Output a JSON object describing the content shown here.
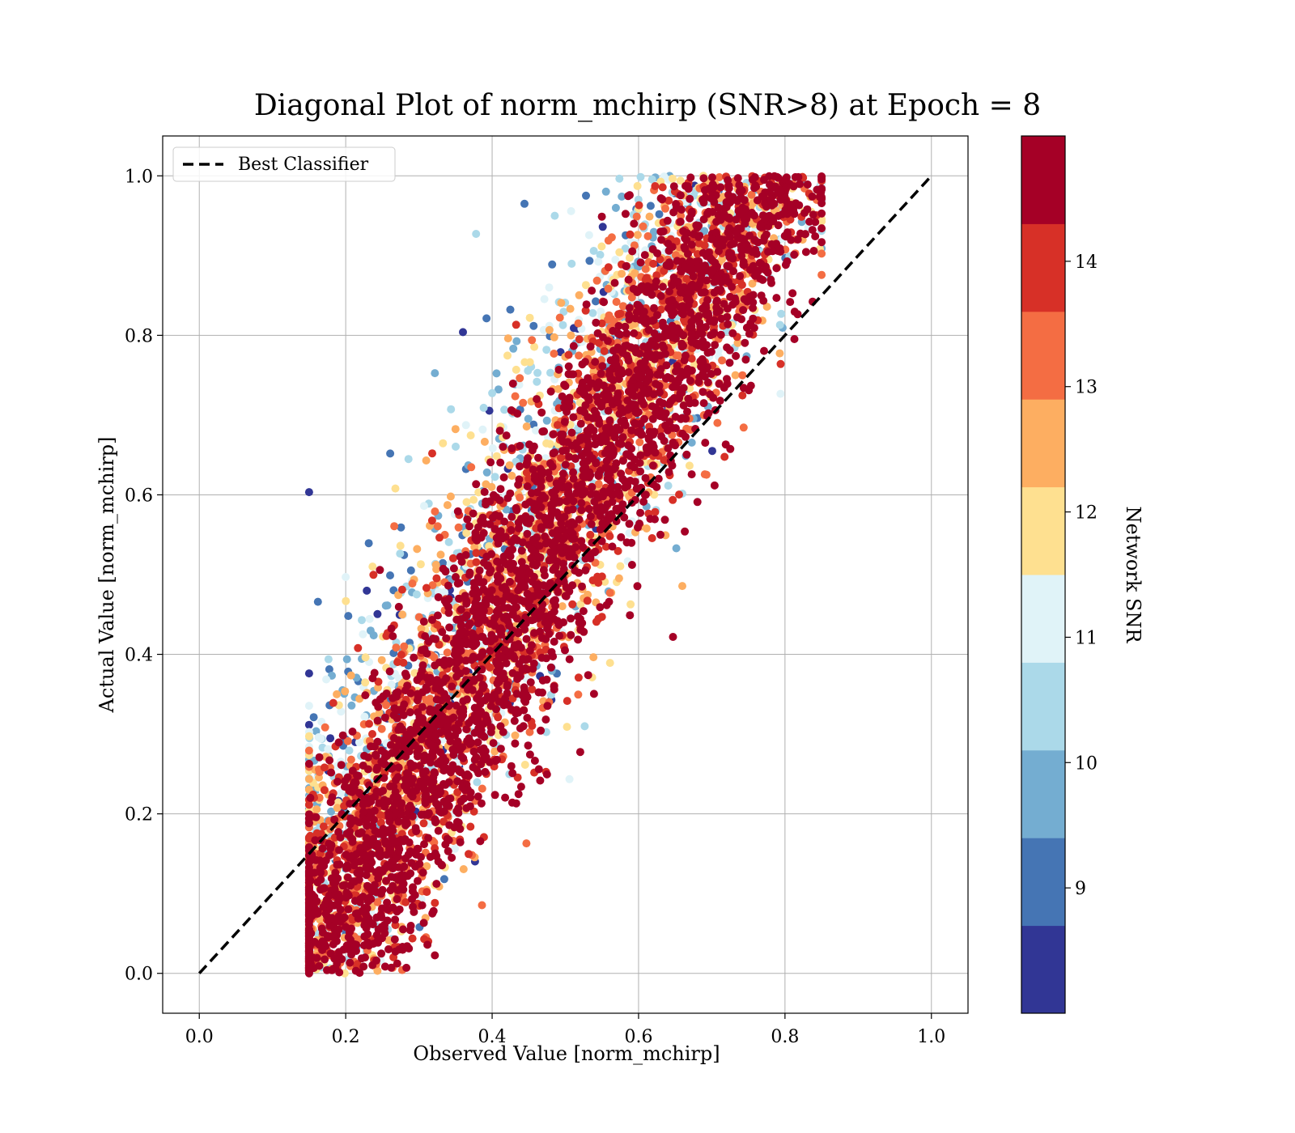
{
  "chart_data": {
    "type": "scatter",
    "title": "Diagonal Plot of norm_mchirp (SNR>8) at Epoch = 8",
    "xlabel": "Observed Value [norm_mchirp]",
    "ylabel": "Actual Value [norm_mchirp]",
    "xlim": [
      -0.05,
      1.05
    ],
    "ylim": [
      -0.05,
      1.05
    ],
    "xticks": [
      "0.0",
      "0.2",
      "0.4",
      "0.6",
      "0.8",
      "1.0"
    ],
    "yticks": [
      "0.0",
      "0.2",
      "0.4",
      "0.6",
      "0.8",
      "1.0"
    ],
    "grid": true,
    "legend": {
      "placement": "top-left",
      "entries": [
        {
          "label": "Best Classifier",
          "style": "black dashed line"
        }
      ]
    },
    "reference_line": {
      "name": "Best Classifier",
      "x": [
        0.0,
        1.0
      ],
      "y": [
        0.0,
        1.0
      ],
      "color": "#000000"
    },
    "colorbar": {
      "label": "Network SNR",
      "range": [
        8.0,
        15.0
      ],
      "ticks": [
        "9",
        "10",
        "11",
        "12",
        "13",
        "14"
      ],
      "colormap": "RdYlBu_r",
      "bins": 10,
      "colors": [
        "#313695",
        "#4575b4",
        "#74add1",
        "#abd9e9",
        "#e0f3f8",
        "#fee090",
        "#fdae61",
        "#f46d43",
        "#d73027",
        "#a50026"
      ]
    },
    "series": [
      {
        "description_of_distribution": "points concentrated in a band around the diagonal; low-SNR (blue) points lie above the diagonal on the left/upper side, high-SNR (dark red) points dense near the diagonal",
        "x_range": [
          0.15,
          0.85
        ],
        "y_range": [
          0.0,
          1.0
        ]
      }
    ]
  }
}
